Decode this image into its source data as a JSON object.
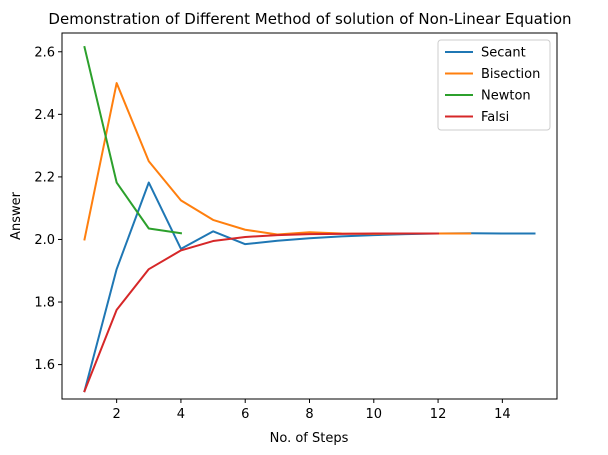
{
  "chart_data": {
    "type": "line",
    "title": "Demonstration of Different Method of solution of Non-Linear Equation",
    "xlabel": "No. of Steps",
    "ylabel": "Answer",
    "xlim": [
      0.3,
      15.7
    ],
    "ylim": [
      1.49,
      2.66
    ],
    "xticks": [
      2,
      4,
      6,
      8,
      10,
      12,
      14
    ],
    "yticks": [
      1.6,
      1.8,
      2.0,
      2.2,
      2.4,
      2.6
    ],
    "grid": false,
    "legend_position": "top-right",
    "series": [
      {
        "name": "Secant",
        "color": "#1f77b4",
        "x": [
          1,
          2,
          3,
          4,
          5,
          6,
          7,
          8,
          9,
          10,
          11,
          12,
          13,
          14,
          15
        ],
        "y": [
          1.515,
          1.905,
          2.182,
          1.97,
          2.026,
          1.985,
          1.996,
          2.004,
          2.01,
          2.014,
          2.017,
          2.019,
          2.02,
          2.019,
          2.019
        ]
      },
      {
        "name": "Bisection",
        "color": "#ff7f0e",
        "x": [
          1,
          2,
          3,
          4,
          5,
          6,
          7,
          8,
          9,
          10,
          11,
          12,
          13
        ],
        "y": [
          2.0,
          2.5,
          2.25,
          2.125,
          2.0625,
          2.031,
          2.016,
          2.023,
          2.019,
          2.018,
          2.019,
          2.019,
          2.019
        ]
      },
      {
        "name": "Newton",
        "color": "#2ca02c",
        "x": [
          1,
          2,
          3,
          4
        ],
        "y": [
          2.615,
          2.182,
          2.035,
          2.02
        ]
      },
      {
        "name": "Falsi",
        "color": "#d62728",
        "x": [
          1,
          2,
          3,
          4,
          5,
          6,
          7,
          8,
          9,
          10,
          11,
          12
        ],
        "y": [
          1.515,
          1.775,
          1.905,
          1.965,
          1.995,
          2.008,
          2.014,
          2.017,
          2.018,
          2.019,
          2.019,
          2.019
        ]
      }
    ]
  }
}
